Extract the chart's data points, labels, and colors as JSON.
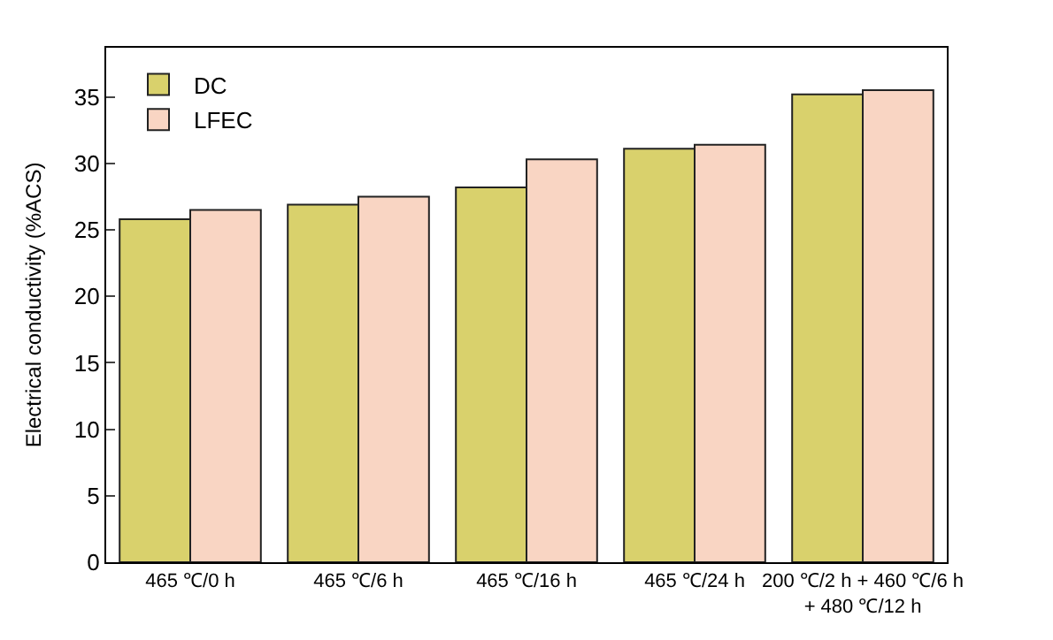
{
  "chart_data": {
    "type": "bar",
    "ylabel": "Electrical conductivity (%ACS)",
    "categories": [
      "465 ℃/0 h",
      "465 ℃/6 h",
      "465 ℃/16 h",
      "465 ℃/24 h",
      "200 ℃/2 h + 460 ℃/6 h\n+ 480 ℃/12 h"
    ],
    "series": [
      {
        "name": "DC",
        "color": "#d9d16c",
        "values": [
          25.8,
          26.9,
          28.2,
          31.1,
          35.2
        ]
      },
      {
        "name": "LFEC",
        "color": "#f9d5c3",
        "values": [
          26.5,
          27.5,
          30.3,
          31.4,
          35.5
        ]
      }
    ],
    "ylim": [
      0,
      38.7
    ],
    "yticks": [
      0,
      5,
      10,
      15,
      20,
      25,
      30,
      35
    ],
    "legend": "top left"
  }
}
